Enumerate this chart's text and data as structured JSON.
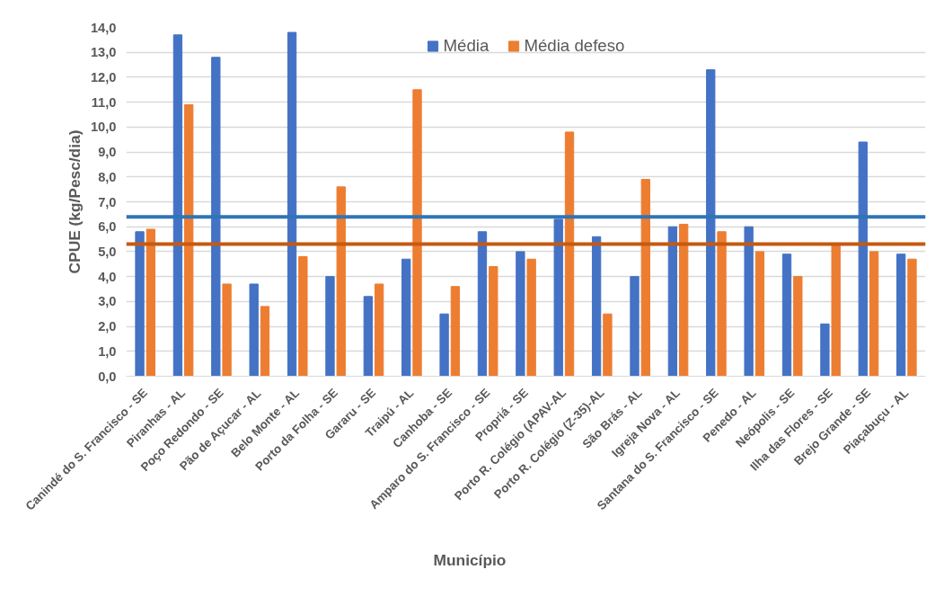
{
  "chart_data": {
    "type": "bar",
    "xlabel": "Município",
    "ylabel": "CPUE (kg/Pesc/dia)",
    "categories": [
      "Canindé do S. Francisco - SE",
      "Piranhas - AL",
      "Poço Redondo - SE",
      "Pão de Açucar - AL",
      "Belo Monte - AL",
      "Porto da Folha - SE",
      "Gararu - SE",
      "Traipú - AL",
      "Canhoba - SE",
      "Amparo do S. Francisco - SE",
      "Propriá - SE",
      "Porto R. Colégio (APAV-AL",
      "Porto R. Colégio (Z-35)-AL",
      "São Brás - AL",
      "Igreja Nova - AL",
      "Santana do S. Francisco - SE",
      "Penedo - AL",
      "Neópolis - SE",
      "Ilha das Flores - SE",
      "Brejo Grande - SE",
      "Piaçabuçu - AL"
    ],
    "series": [
      {
        "name": "Média",
        "color": "#4472c4",
        "values": [
          5.8,
          13.7,
          12.8,
          3.7,
          13.8,
          4.0,
          3.2,
          4.7,
          2.5,
          5.8,
          5.0,
          6.3,
          5.6,
          4.0,
          6.0,
          12.3,
          6.0,
          4.9,
          2.1,
          9.4,
          4.9
        ]
      },
      {
        "name": "Média defeso",
        "color": "#ed7d31",
        "values": [
          5.9,
          10.9,
          3.7,
          2.8,
          4.8,
          7.6,
          3.7,
          11.5,
          3.6,
          4.4,
          4.7,
          9.8,
          2.5,
          7.9,
          6.1,
          5.8,
          5.0,
          4.0,
          5.3,
          5.0,
          4.7
        ]
      }
    ],
    "ylim": [
      0,
      14
    ],
    "yticks": [
      {
        "value": 0,
        "label": "0,0"
      },
      {
        "value": 1,
        "label": "1,0"
      },
      {
        "value": 2,
        "label": "2,0"
      },
      {
        "value": 3,
        "label": "3,0"
      },
      {
        "value": 4,
        "label": "4,0"
      },
      {
        "value": 5,
        "label": "5,0"
      },
      {
        "value": 6,
        "label": "6,0"
      },
      {
        "value": 7,
        "label": "7,0"
      },
      {
        "value": 8,
        "label": "8,0"
      },
      {
        "value": 9,
        "label": "9,0"
      },
      {
        "value": 10,
        "label": "10,0"
      },
      {
        "value": 11,
        "label": "11,0"
      },
      {
        "value": 12,
        "label": "12,0"
      },
      {
        "value": 13,
        "label": "13,0"
      },
      {
        "value": 14,
        "label": "14,0"
      }
    ],
    "ref_lines": [
      {
        "axis": "y",
        "value": 6.4,
        "color": "#2e75b6"
      },
      {
        "axis": "y",
        "value": 5.3,
        "color": "#c55a11"
      }
    ],
    "grid": "y",
    "legend": "top"
  }
}
